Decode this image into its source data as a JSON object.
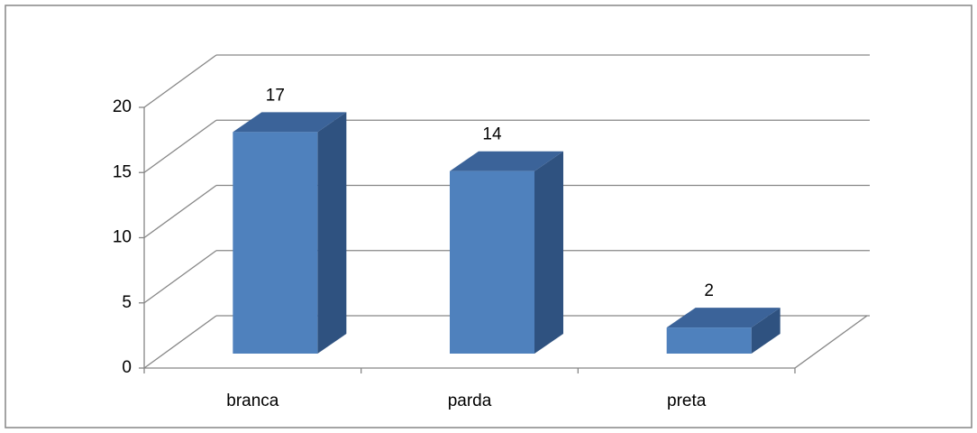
{
  "chart_data": {
    "type": "bar3d",
    "categories": [
      "branca",
      "parda",
      "preta"
    ],
    "values": [
      17,
      14,
      2
    ],
    "color": "#4f81bd",
    "ylim": [
      0,
      20
    ],
    "yticks": [
      0,
      5,
      10,
      15,
      20
    ],
    "grid": true
  }
}
